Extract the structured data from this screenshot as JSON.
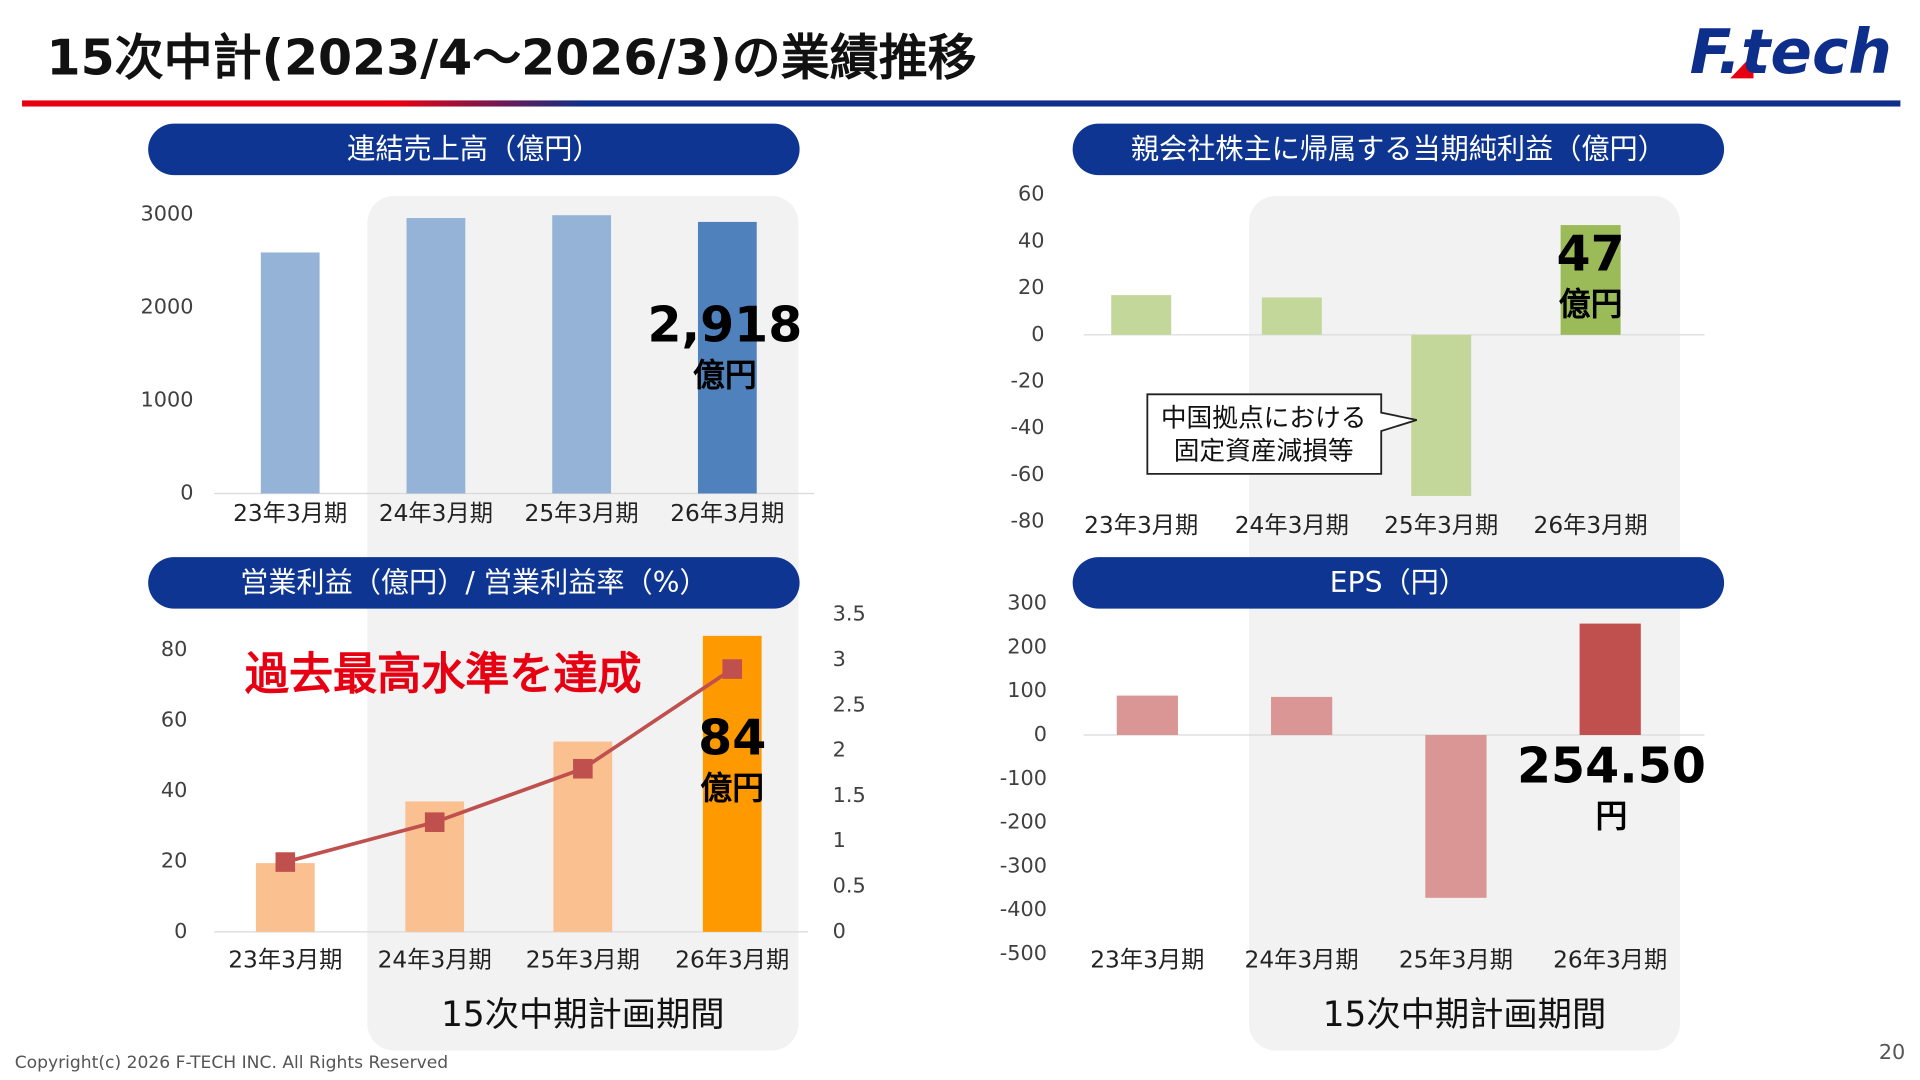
{
  "header": {
    "title": "15次中計(2023/4～2026/3)の業績推移",
    "logo": "F.tech"
  },
  "footer": {
    "copyright": "Copyright(c) 2026 F-TECH INC. All Rights Reserved",
    "page": "20"
  },
  "chart_data": [
    {
      "type": "bar",
      "title": "連結売上高（億円）",
      "categories": [
        "23年3月期",
        "24年3月期",
        "25年3月期",
        "26年3月期"
      ],
      "values": [
        2590,
        2960,
        2990,
        2918
      ],
      "value_labels": [
        null,
        null,
        null,
        "2,918"
      ],
      "value_unit": "億円",
      "colors": [
        "#95b3d7",
        "#95b3d7",
        "#95b3d7",
        "#4f81bd"
      ],
      "ylim": [
        0,
        3000
      ],
      "yticks": [
        0,
        1000,
        2000,
        3000
      ],
      "grid": false
    },
    {
      "type": "bar",
      "title": "親会社株主に帰属する当期純利益（億円）",
      "categories": [
        "23年3月期",
        "24年3月期",
        "25年3月期",
        "26年3月期"
      ],
      "values": [
        17,
        16,
        -69,
        47
      ],
      "value_labels": [
        null,
        null,
        null,
        "47"
      ],
      "value_unit": "億円",
      "colors": [
        "#c4d79b",
        "#c4d79b",
        "#c4d79b",
        "#9bbb59"
      ],
      "ylim": [
        -80,
        60
      ],
      "yticks": [
        -80,
        -60,
        -40,
        -20,
        0,
        20,
        40,
        60
      ],
      "grid": false,
      "annotation": [
        "中国拠点における",
        "固定資産減損等"
      ]
    },
    {
      "type": "bar-line",
      "title": "営業利益（億円）/ 営業利益率（%）",
      "categories": [
        "23年3月期",
        "24年3月期",
        "25年3月期",
        "26年3月期"
      ],
      "series": [
        {
          "type": "bar",
          "values": [
            19.5,
            37,
            54,
            84
          ],
          "value_labels": [
            null,
            null,
            null,
            "84"
          ],
          "colors": [
            "#fac090",
            "#fac090",
            "#fac090",
            "#ff9900"
          ]
        },
        {
          "type": "line",
          "axis": "y2",
          "color": "#c0504d",
          "values": [
            0.77,
            1.21,
            1.8,
            2.9
          ]
        }
      ],
      "value_unit": "億円",
      "ylim": [
        0,
        90
      ],
      "yticks": [
        0,
        20,
        40,
        60,
        80
      ],
      "y2lim": [
        0,
        3.5
      ],
      "y2ticks": [
        0,
        0.5,
        1,
        1.5,
        2,
        2.5,
        3,
        3.5
      ],
      "grid": false,
      "annotation": "過去最高水準を達成",
      "highlight_label": "15次中期計画期間"
    },
    {
      "type": "bar",
      "title": "EPS（円）",
      "categories": [
        "23年3月期",
        "24年3月期",
        "25年3月期",
        "26年3月期"
      ],
      "values": [
        90,
        87,
        -372,
        254.5
      ],
      "value_labels": [
        null,
        null,
        null,
        "254.50"
      ],
      "value_unit": "円",
      "colors": [
        "#da9694",
        "#da9694",
        "#da9694",
        "#c0504d"
      ],
      "ylim": [
        -500,
        300
      ],
      "yticks": [
        -500,
        -400,
        -300,
        -200,
        -100,
        0,
        100,
        200,
        300
      ],
      "grid": false,
      "highlight_label": "15次中期計画期間"
    }
  ]
}
